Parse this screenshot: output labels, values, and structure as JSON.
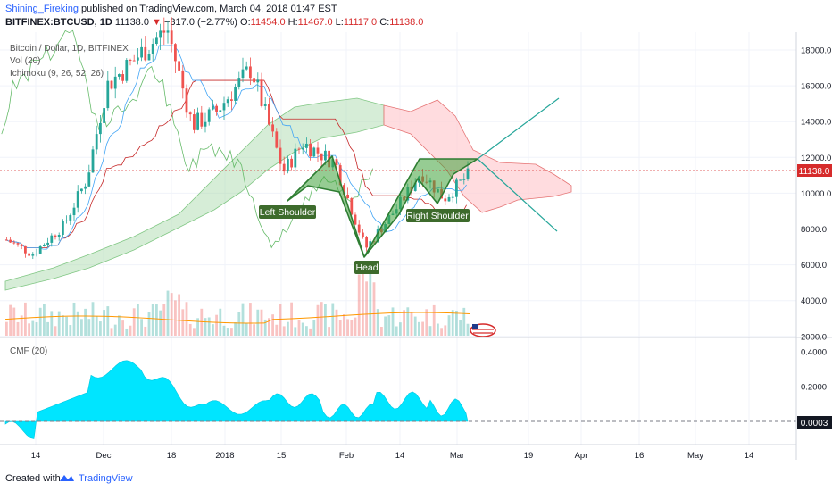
{
  "publish": {
    "author": "Shining_Fireking",
    "text": "published on TradingView.com, March 04, 2018 01:47 EST"
  },
  "ohlc": {
    "symbol": "BITFINEX:BTCUSD, 1D",
    "last": "11138.0",
    "arrow": "▼",
    "change": "−317.0 (−2.77%)",
    "o_label": "O:",
    "o": "11454.0",
    "h_label": "H:",
    "h": "11467.0",
    "l_label": "L:",
    "l": "11117.0",
    "c_label": "C:",
    "c": "11138.0"
  },
  "legends": {
    "title": "Bitcoin / Dollar, 1D, BITFINEX",
    "vol": "Vol (20)",
    "ichimoku": "Ichimoku (9, 26, 52, 26)",
    "cmf": "CMF (20)"
  },
  "annotations": {
    "left_shoulder": "Left Shoulder",
    "head": "Head",
    "right_shoulder": "Right Shoulder"
  },
  "price_axis": {
    "ticks": [
      "18000.0",
      "16000.0",
      "14000.0",
      "12000.0",
      "10000.0",
      "8000.0",
      "6000.0",
      "4000.0",
      "2000.0"
    ],
    "tick_values": [
      18000,
      16000,
      14000,
      12000,
      10000,
      8000,
      6000,
      4000,
      2000
    ],
    "current_label": "11138.0",
    "current_value": 11138
  },
  "cmf_axis": {
    "ticks": [
      "0.4000",
      "0.2000"
    ],
    "tick_values": [
      0.4,
      0.2
    ],
    "current_label": "0.0003",
    "current_value": 0.0003
  },
  "time_axis": {
    "labels": [
      "14",
      "Dec",
      "18",
      "2018",
      "15",
      "Feb",
      "14",
      "Mar",
      "19",
      "Apr",
      "16",
      "May",
      "14"
    ]
  },
  "footer": {
    "created": "Created with",
    "brand": "TradingView"
  },
  "colors": {
    "up": "#26a69a",
    "down": "#ef5350",
    "cmf_fill": "#00e5ff",
    "pattern_fill": "#3fa33a",
    "pattern_line": "#2e7d32",
    "cloud_green": "#a5d6a7",
    "cloud_red": "#ffcdd2",
    "current_price": "#d62b2b",
    "trendline": "#26a69a"
  },
  "chart_data": {
    "type": "candlestick",
    "symbol": "BITFINEX:BTCUSD",
    "interval": "1D",
    "approx_close_path": [
      {
        "date": "Nov 05",
        "close": 7400
      },
      {
        "date": "Nov 14",
        "close": 6600
      },
      {
        "date": "Nov 24",
        "close": 8200
      },
      {
        "date": "Dec 01",
        "close": 10800
      },
      {
        "date": "Dec 07",
        "close": 16000
      },
      {
        "date": "Dec 17",
        "close": 19200
      },
      {
        "date": "Dec 22",
        "close": 13800
      },
      {
        "date": "Dec 28",
        "close": 14500
      },
      {
        "date": "Jan 06",
        "close": 17000
      },
      {
        "date": "Jan 16",
        "close": 11200
      },
      {
        "date": "Jan 20",
        "close": 12800
      },
      {
        "date": "Jan 28",
        "close": 11700
      },
      {
        "date": "Feb 06",
        "close": 6900
      },
      {
        "date": "Feb 14",
        "close": 9500
      },
      {
        "date": "Feb 20",
        "close": 11200
      },
      {
        "date": "Feb 25",
        "close": 9700
      },
      {
        "date": "Mar 04",
        "close": 11138
      }
    ]
  }
}
